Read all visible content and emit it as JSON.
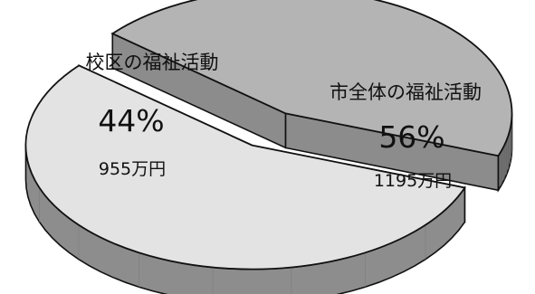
{
  "chart_data": {
    "type": "pie",
    "style": "3d-exploded",
    "slices": [
      {
        "label": "校区の福祉活動",
        "percent_text": "44%",
        "amount_text": "955万円",
        "value": 955,
        "color": "#b4b4b4"
      },
      {
        "label": "市全体の福祉活動",
        "percent_text": "56%",
        "amount_text": "1195万円",
        "value": 1195,
        "color": "#e3e3e3"
      }
    ]
  }
}
